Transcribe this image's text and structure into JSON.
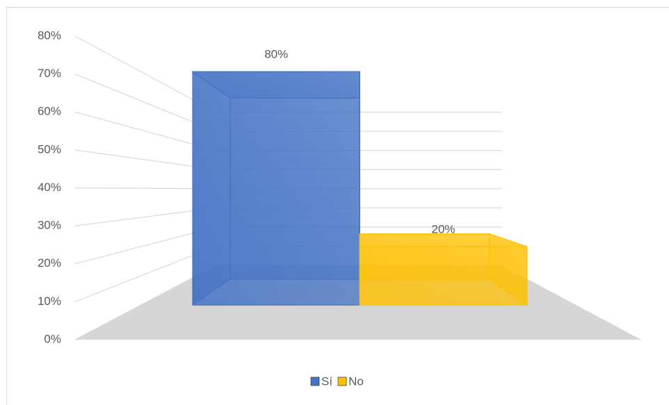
{
  "chart_data": {
    "type": "bar",
    "categories": [
      "Sí",
      "No"
    ],
    "values": [
      80,
      20
    ],
    "value_labels": [
      "80%",
      "20%"
    ],
    "colors": [
      "#4472c4",
      "#ffc000"
    ],
    "ylim": [
      0,
      80
    ],
    "yticks": [
      {
        "value": 0,
        "label": "0%"
      },
      {
        "value": 10,
        "label": "10%"
      },
      {
        "value": 20,
        "label": "20%"
      },
      {
        "value": 30,
        "label": "30%"
      },
      {
        "value": 40,
        "label": "40%"
      },
      {
        "value": 50,
        "label": "50%"
      },
      {
        "value": 60,
        "label": "60%"
      },
      {
        "value": 70,
        "label": "70%"
      },
      {
        "value": 80,
        "label": "80%"
      }
    ],
    "grid": true,
    "legend": "bottom"
  }
}
